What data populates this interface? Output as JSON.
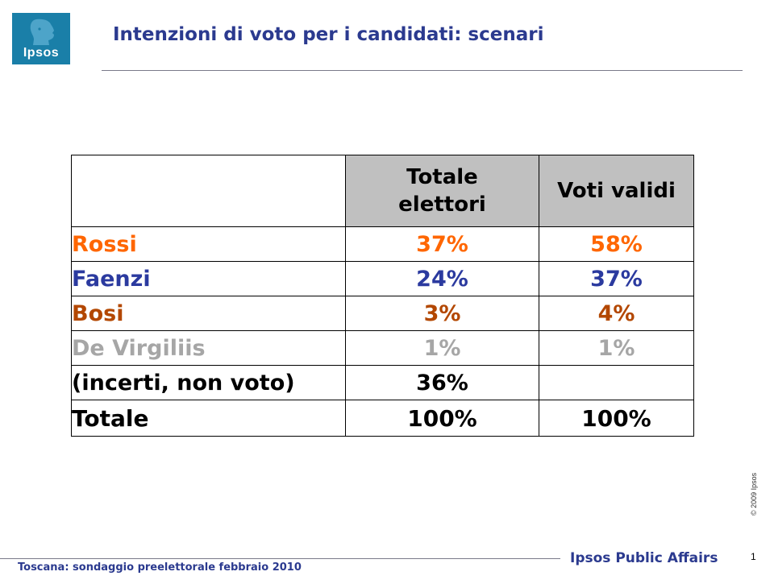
{
  "logo": {
    "text": "Ipsos"
  },
  "title": "Intenzioni di voto per i candidati: scenari",
  "table": {
    "headers": [
      "",
      "Totale elettori",
      "Voti validi"
    ],
    "rows": [
      {
        "name": "Rossi",
        "totale": "37%",
        "validi": "58%",
        "color": "#ff6600"
      },
      {
        "name": "Faenzi",
        "totale": "24%",
        "validi": "37%",
        "color": "#2b3a9f"
      },
      {
        "name": "Bosi",
        "totale": "3%",
        "validi": "4%",
        "color": "#b34700"
      },
      {
        "name": "De Virgiliis",
        "totale": "1%",
        "validi": "1%",
        "color": "#a6a6a6"
      },
      {
        "name": "(incerti, non voto)",
        "totale": "36%",
        "validi": "",
        "color": "#000000"
      },
      {
        "name": "Totale",
        "totale": "100%",
        "validi": "100%",
        "color": "#000000"
      }
    ]
  },
  "footer": {
    "survey": "Toscana: sondaggio preelettorale febbraio 2010",
    "brand": "Ipsos Public Affairs",
    "page_number": "1",
    "copyright": "© 2009 Ipsos"
  },
  "colors": {
    "brand_blue": "#2b3a8f",
    "logo_bg": "#1a7fa8",
    "header_bg": "#c0c0c0"
  }
}
